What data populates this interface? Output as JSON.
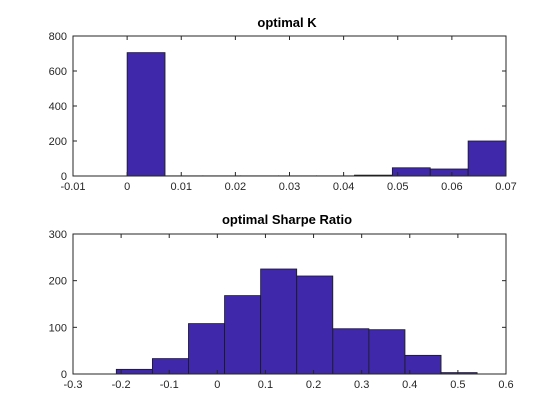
{
  "chart_data": [
    {
      "type": "bar",
      "title": "optimal K",
      "xlim": [
        -0.01,
        0.07
      ],
      "ylim": [
        0,
        800
      ],
      "xticks": [
        "-0.01",
        "0",
        "0.01",
        "0.02",
        "0.03",
        "0.04",
        "0.05",
        "0.06",
        "0.07"
      ],
      "yticks": [
        "0",
        "200",
        "400",
        "600",
        "800"
      ],
      "bar_color": "#3F28AA",
      "bins": [
        {
          "x0": 0.0,
          "x1": 0.007,
          "value": 705
        },
        {
          "x0": 0.007,
          "x1": 0.014,
          "value": 1
        },
        {
          "x0": 0.014,
          "x1": 0.021,
          "value": 1
        },
        {
          "x0": 0.021,
          "x1": 0.028,
          "value": 1
        },
        {
          "x0": 0.028,
          "x1": 0.035,
          "value": 1
        },
        {
          "x0": 0.035,
          "x1": 0.042,
          "value": 1
        },
        {
          "x0": 0.042,
          "x1": 0.049,
          "value": 5
        },
        {
          "x0": 0.049,
          "x1": 0.056,
          "value": 47
        },
        {
          "x0": 0.056,
          "x1": 0.063,
          "value": 40
        },
        {
          "x0": 0.063,
          "x1": 0.07,
          "value": 200
        }
      ]
    },
    {
      "type": "bar",
      "title": "optimal Sharpe Ratio",
      "xlim": [
        -0.3,
        0.6
      ],
      "ylim": [
        0,
        300
      ],
      "xticks": [
        "-0.3",
        "-0.2",
        "-0.1",
        "0",
        "0.1",
        "0.2",
        "0.3",
        "0.4",
        "0.5",
        "0.6"
      ],
      "yticks": [
        "0",
        "100",
        "200",
        "300"
      ],
      "bar_color": "#3F28AA",
      "bins": [
        {
          "x0": -0.21,
          "x1": -0.135,
          "value": 10
        },
        {
          "x0": -0.135,
          "x1": -0.06,
          "value": 33
        },
        {
          "x0": -0.06,
          "x1": 0.015,
          "value": 108
        },
        {
          "x0": 0.015,
          "x1": 0.09,
          "value": 168
        },
        {
          "x0": 0.09,
          "x1": 0.165,
          "value": 225
        },
        {
          "x0": 0.165,
          "x1": 0.24,
          "value": 210
        },
        {
          "x0": 0.24,
          "x1": 0.315,
          "value": 97
        },
        {
          "x0": 0.315,
          "x1": 0.39,
          "value": 95
        },
        {
          "x0": 0.39,
          "x1": 0.465,
          "value": 40
        },
        {
          "x0": 0.465,
          "x1": 0.54,
          "value": 3
        }
      ]
    }
  ]
}
